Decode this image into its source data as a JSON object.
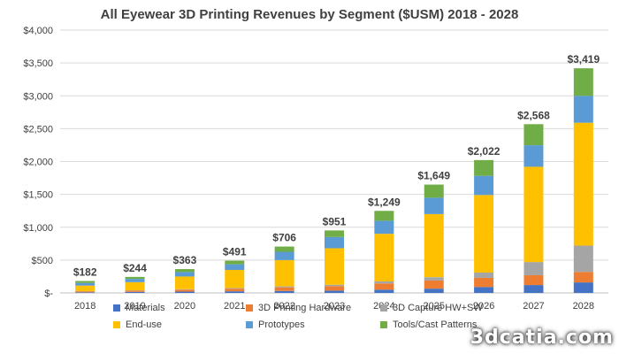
{
  "chart_data": {
    "type": "bar",
    "stacked": true,
    "title": "All Eyewear 3D Printing Revenues by Segment ($USM) 2018 - 2028",
    "xlabel": "",
    "ylabel": "",
    "categories": [
      "2018",
      "2019",
      "2020",
      "2021",
      "2022",
      "2023",
      "2024",
      "2025",
      "2026",
      "2027",
      "2028"
    ],
    "ylim": [
      0,
      4000
    ],
    "yticks": [
      0,
      500,
      1000,
      1500,
      2000,
      2500,
      3000,
      3500,
      4000
    ],
    "ytick_labels": [
      "$-",
      "$500",
      "$1,000",
      "$1,500",
      "$2,000",
      "$2,500",
      "$3,000",
      "$3,500",
      "$4,000"
    ],
    "grid": true,
    "legend": "bottom",
    "totals": [
      182,
      244,
      363,
      491,
      706,
      951,
      1249,
      1649,
      2022,
      2568,
      3419
    ],
    "total_labels": [
      "$182",
      "$244",
      "$363",
      "$491",
      "$706",
      "$951",
      "$1,249",
      "$1,649",
      "$2,022",
      "$2,568",
      "$3,419"
    ],
    "series": [
      {
        "name": "Materials",
        "color": "#4472c4",
        "values": [
          10,
          15,
          20,
          25,
          30,
          35,
          50,
          65,
          90,
          120,
          160
        ]
      },
      {
        "name": "3D Printing Hardware",
        "color": "#ed7d31",
        "values": [
          15,
          20,
          30,
          40,
          55,
          70,
          95,
          125,
          140,
          150,
          160
        ]
      },
      {
        "name": "3D Capture HW+SW",
        "color": "#a5a5a5",
        "values": [
          3,
          5,
          7,
          10,
          15,
          20,
          30,
          50,
          80,
          200,
          400
        ]
      },
      {
        "name": "End-use",
        "color": "#ffc000",
        "values": [
          84,
          124,
          193,
          275,
          400,
          555,
          725,
          960,
          1180,
          1450,
          1870
        ]
      },
      {
        "name": "Prototypes",
        "color": "#5b9bd5",
        "values": [
          40,
          50,
          68,
          86,
          126,
          171,
          199,
          249,
          292,
          328,
          409
        ]
      },
      {
        "name": "Tools/Cast Patterns",
        "color": "#70ad47",
        "values": [
          30,
          30,
          45,
          55,
          80,
          100,
          150,
          200,
          240,
          320,
          420
        ]
      }
    ]
  },
  "watermark": "3dcatia.com"
}
